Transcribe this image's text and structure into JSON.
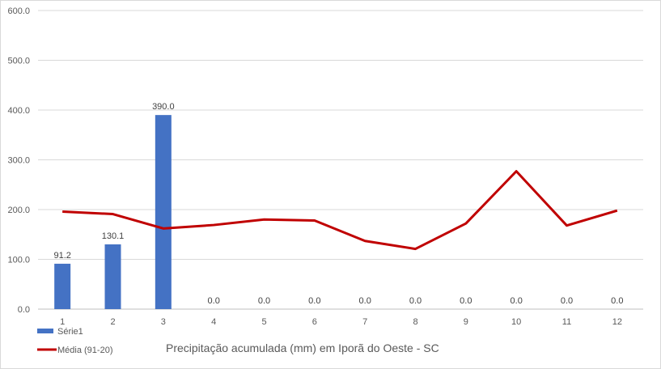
{
  "chart_data": {
    "type": "bar",
    "categories": [
      "1",
      "2",
      "3",
      "4",
      "5",
      "6",
      "7",
      "8",
      "9",
      "10",
      "11",
      "12"
    ],
    "series": [
      {
        "name": "Série1",
        "kind": "bar",
        "color": "#4472C4",
        "values": [
          91.2,
          130.1,
          390.0,
          0.0,
          0.0,
          0.0,
          0.0,
          0.0,
          0.0,
          0.0,
          0.0,
          0.0
        ],
        "labels": [
          "91.2",
          "130.1",
          "390.0",
          "0.0",
          "0.0",
          "0.0",
          "0.0",
          "0.0",
          "0.0",
          "0.0",
          "0.0",
          "0.0"
        ]
      },
      {
        "name": "Média (91-20)",
        "kind": "line",
        "color": "#C00000",
        "values": [
          196,
          191,
          162,
          169,
          180,
          178,
          137,
          121,
          172,
          277,
          168,
          198
        ]
      }
    ],
    "ylim": [
      0,
      600
    ],
    "yticks": [
      "0.0",
      "100.0",
      "200.0",
      "300.0",
      "400.0",
      "500.0",
      "600.0"
    ],
    "ytick_values": [
      0,
      100,
      200,
      300,
      400,
      500,
      600
    ],
    "caption": "Precipitação acumulada (mm)  em Iporã do Oeste - SC",
    "grid": true,
    "legend_position": "bottom-left"
  }
}
